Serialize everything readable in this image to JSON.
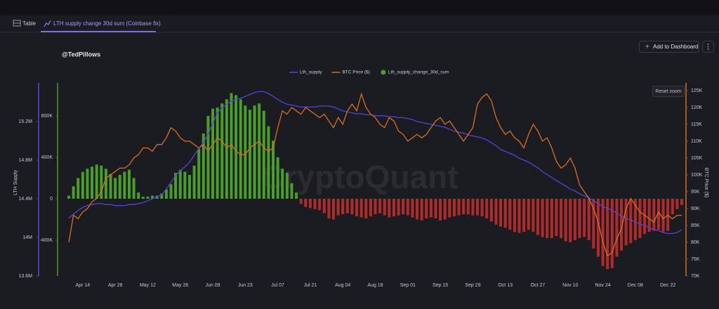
{
  "tabs": [
    "Table",
    "LTH supply change 30d sum (Coinbase fix)"
  ],
  "button": "Add to Dashboard",
  "author": "@TedPillows",
  "reset_zoom": "Reset zoom",
  "watermark": "CryptoQuant",
  "chart_data": {
    "type": "combo",
    "y_label": "LTH Supply",
    "y2_label": "BTC Price ($)",
    "categories": [
      null,
      null,
      null,
      "Apr 14",
      null,
      null,
      null,
      null,
      null,
      null,
      "Apr 28",
      null,
      null,
      null,
      null,
      null,
      null,
      "May 12",
      null,
      null,
      null,
      null,
      null,
      null,
      "May 26",
      null,
      null,
      null,
      null,
      null,
      null,
      "Jun 09",
      null,
      null,
      null,
      null,
      null,
      null,
      "Jun 23",
      null,
      null,
      null,
      null,
      null,
      null,
      "Jul 07",
      null,
      null,
      null,
      null,
      null,
      null,
      "Jul 21",
      null,
      null,
      null,
      null,
      null,
      null,
      "Aug 04",
      null,
      null,
      null,
      null,
      null,
      null,
      "Aug 18",
      null,
      null,
      null,
      null,
      null,
      null,
      "Sep 01",
      null,
      null,
      null,
      null,
      null,
      null,
      "Sep 15",
      null,
      null,
      null,
      null,
      null,
      null,
      "Sep 29",
      null,
      null,
      null,
      null,
      null,
      null,
      "Oct 13",
      null,
      null,
      null,
      null,
      null,
      null,
      "Oct 27",
      null,
      null,
      null,
      null,
      null,
      null,
      "Nov 10",
      null,
      null,
      null,
      null,
      null,
      null,
      "Nov 24",
      null,
      null,
      null,
      null,
      null,
      null,
      "Dec 08",
      null,
      null,
      null,
      null,
      null,
      null,
      "Dec 22",
      null,
      null,
      null
    ],
    "ylim": [
      13600000,
      15600000
    ],
    "yticks": [
      {
        "value": 13600000,
        "label": "13.6M"
      },
      {
        "value": 14000000,
        "label": "14M"
      },
      {
        "value": 14400000,
        "label": "14.4M"
      },
      {
        "value": 14800000,
        "label": "14.8M"
      },
      {
        "value": 15200000,
        "label": "15.2M"
      }
    ],
    "y3lim": [
      -746000,
      1119000
    ],
    "y3ticks": [
      {
        "value": -400000,
        "label": "-400K"
      },
      0,
      {
        "value": 400000,
        "label": "400K"
      },
      {
        "value": 800000,
        "label": "800K"
      }
    ],
    "y2lim": [
      70000,
      127300
    ],
    "y2ticks": [
      {
        "value": 70000,
        "label": "70K"
      },
      {
        "value": 75000,
        "label": "75K"
      },
      {
        "value": 80000,
        "label": "80K"
      },
      {
        "value": 85000,
        "label": "85K"
      },
      {
        "value": 90000,
        "label": "90K"
      },
      {
        "value": 95000,
        "label": "95K"
      },
      {
        "value": 100000,
        "label": "100K"
      },
      {
        "value": 105000,
        "label": "105K"
      },
      {
        "value": 110000,
        "label": "110K"
      },
      {
        "value": 115000,
        "label": "115K"
      },
      {
        "value": 120000,
        "label": "120K"
      },
      {
        "value": 125000,
        "label": "125K"
      }
    ],
    "series": [
      {
        "name": "Lth_supply",
        "type": "line",
        "axis": "y",
        "color": "#5544d8",
        "values": [
          14200000,
          14240000,
          14280000,
          14310000,
          14330000,
          14340000,
          14350000,
          14350000,
          14340000,
          14340000,
          14330000,
          14330000,
          14330000,
          14340000,
          14340000,
          14350000,
          14360000,
          14380000,
          14400000,
          14420000,
          14440000,
          14500000,
          14570000,
          14640000,
          14690000,
          14730000,
          14780000,
          14850000,
          14920000,
          14980000,
          15070000,
          15180000,
          15290000,
          15340000,
          15380000,
          15410000,
          15430000,
          15440000,
          15460000,
          15480000,
          15500000,
          15510000,
          15510000,
          15490000,
          15460000,
          15430000,
          15400000,
          15380000,
          15370000,
          15360000,
          15350000,
          15350000,
          15350000,
          15350000,
          15360000,
          15360000,
          15360000,
          15350000,
          15330000,
          15310000,
          15300000,
          15290000,
          15280000,
          15280000,
          15270000,
          15270000,
          15260000,
          15260000,
          15260000,
          15250000,
          15250000,
          15240000,
          15240000,
          15230000,
          15220000,
          15200000,
          15190000,
          15180000,
          15170000,
          15160000,
          15150000,
          15140000,
          15120000,
          15100000,
          15090000,
          15080000,
          15060000,
          15050000,
          15040000,
          15030000,
          15010000,
          14980000,
          14950000,
          14910000,
          14890000,
          14870000,
          14850000,
          14820000,
          14800000,
          14780000,
          14750000,
          14720000,
          14680000,
          14650000,
          14620000,
          14590000,
          14560000,
          14530000,
          14500000,
          14480000,
          14450000,
          14430000,
          14410000,
          14380000,
          14350000,
          14320000,
          14300000,
          14280000,
          14250000,
          14220000,
          14200000,
          14180000,
          14160000,
          14140000,
          14120000,
          14100000,
          14080000,
          14070000,
          14050000,
          14040000,
          14040000,
          14050000,
          14080000
        ]
      },
      {
        "name": "BTC Price ($)",
        "type": "line",
        "axis": "y2",
        "color": "#d8701c",
        "values": [
          80000,
          88000,
          87000,
          89000,
          90000,
          92000,
          93000,
          95000,
          99000,
          100000,
          101000,
          102000,
          102000,
          103000,
          105000,
          106000,
          108000,
          108000,
          107000,
          109000,
          109000,
          111000,
          114000,
          113000,
          111000,
          110000,
          110000,
          109000,
          108000,
          109000,
          107000,
          109000,
          111000,
          110000,
          108000,
          109000,
          107000,
          106000,
          106000,
          108000,
          109000,
          110000,
          108000,
          107000,
          108000,
          114000,
          119000,
          118000,
          120000,
          119000,
          118000,
          120000,
          119000,
          118000,
          117000,
          118000,
          116000,
          114000,
          117000,
          115000,
          119000,
          121000,
          119000,
          124000,
          120000,
          118000,
          117000,
          115000,
          114000,
          117000,
          116000,
          113000,
          112000,
          110000,
          111000,
          112000,
          111000,
          112000,
          114000,
          116000,
          117000,
          115000,
          116000,
          114000,
          112000,
          110000,
          112000,
          114000,
          121000,
          123000,
          124000,
          122000,
          117000,
          114000,
          112000,
          113000,
          111000,
          110000,
          108000,
          112000,
          115000,
          113000,
          110000,
          111000,
          108000,
          104000,
          102000,
          103000,
          105000,
          102000,
          97000,
          95000,
          93000,
          90000,
          86000,
          80000,
          76000,
          77000,
          81000,
          84000,
          90000,
          93000,
          91000,
          89000,
          88000,
          87000,
          86000,
          89000,
          87000,
          88000,
          87000,
          88000,
          88000
        ]
      },
      {
        "name": "Lth_supply_change_30d_sum",
        "type": "bar",
        "axis": "y3",
        "color": "#4a9e2a",
        "negative_color": "#b02c2a",
        "values": [
          30000,
          120000,
          200000,
          260000,
          290000,
          310000,
          330000,
          320000,
          290000,
          240000,
          200000,
          230000,
          260000,
          280000,
          200000,
          60000,
          20000,
          20000,
          30000,
          30000,
          50000,
          90000,
          140000,
          250000,
          280000,
          260000,
          230000,
          320000,
          480000,
          630000,
          800000,
          870000,
          880000,
          920000,
          960000,
          1020000,
          1000000,
          960000,
          900000,
          860000,
          900000,
          920000,
          850000,
          700000,
          560000,
          400000,
          290000,
          250000,
          150000,
          60000,
          -50000,
          -80000,
          -90000,
          -100000,
          -110000,
          -140000,
          -190000,
          -200000,
          -160000,
          -150000,
          -140000,
          -150000,
          -170000,
          -180000,
          -190000,
          -170000,
          -150000,
          -140000,
          -160000,
          -180000,
          -170000,
          -160000,
          -150000,
          -160000,
          -180000,
          -200000,
          -210000,
          -190000,
          -180000,
          -190000,
          -210000,
          -200000,
          -180000,
          -170000,
          -160000,
          -150000,
          -150000,
          -160000,
          -160000,
          -170000,
          -190000,
          -220000,
          -250000,
          -270000,
          -280000,
          -300000,
          -320000,
          -330000,
          -320000,
          -300000,
          -320000,
          -350000,
          -370000,
          -380000,
          -380000,
          -360000,
          -380000,
          -410000,
          -420000,
          -400000,
          -380000,
          -370000,
          -400000,
          -480000,
          -560000,
          -650000,
          -680000,
          -670000,
          -560000,
          -500000,
          -450000,
          -430000,
          -400000,
          -380000,
          -340000,
          -320000,
          -310000,
          -300000,
          -320000,
          -310000,
          -150000,
          -100000,
          -60000
        ]
      }
    ]
  }
}
